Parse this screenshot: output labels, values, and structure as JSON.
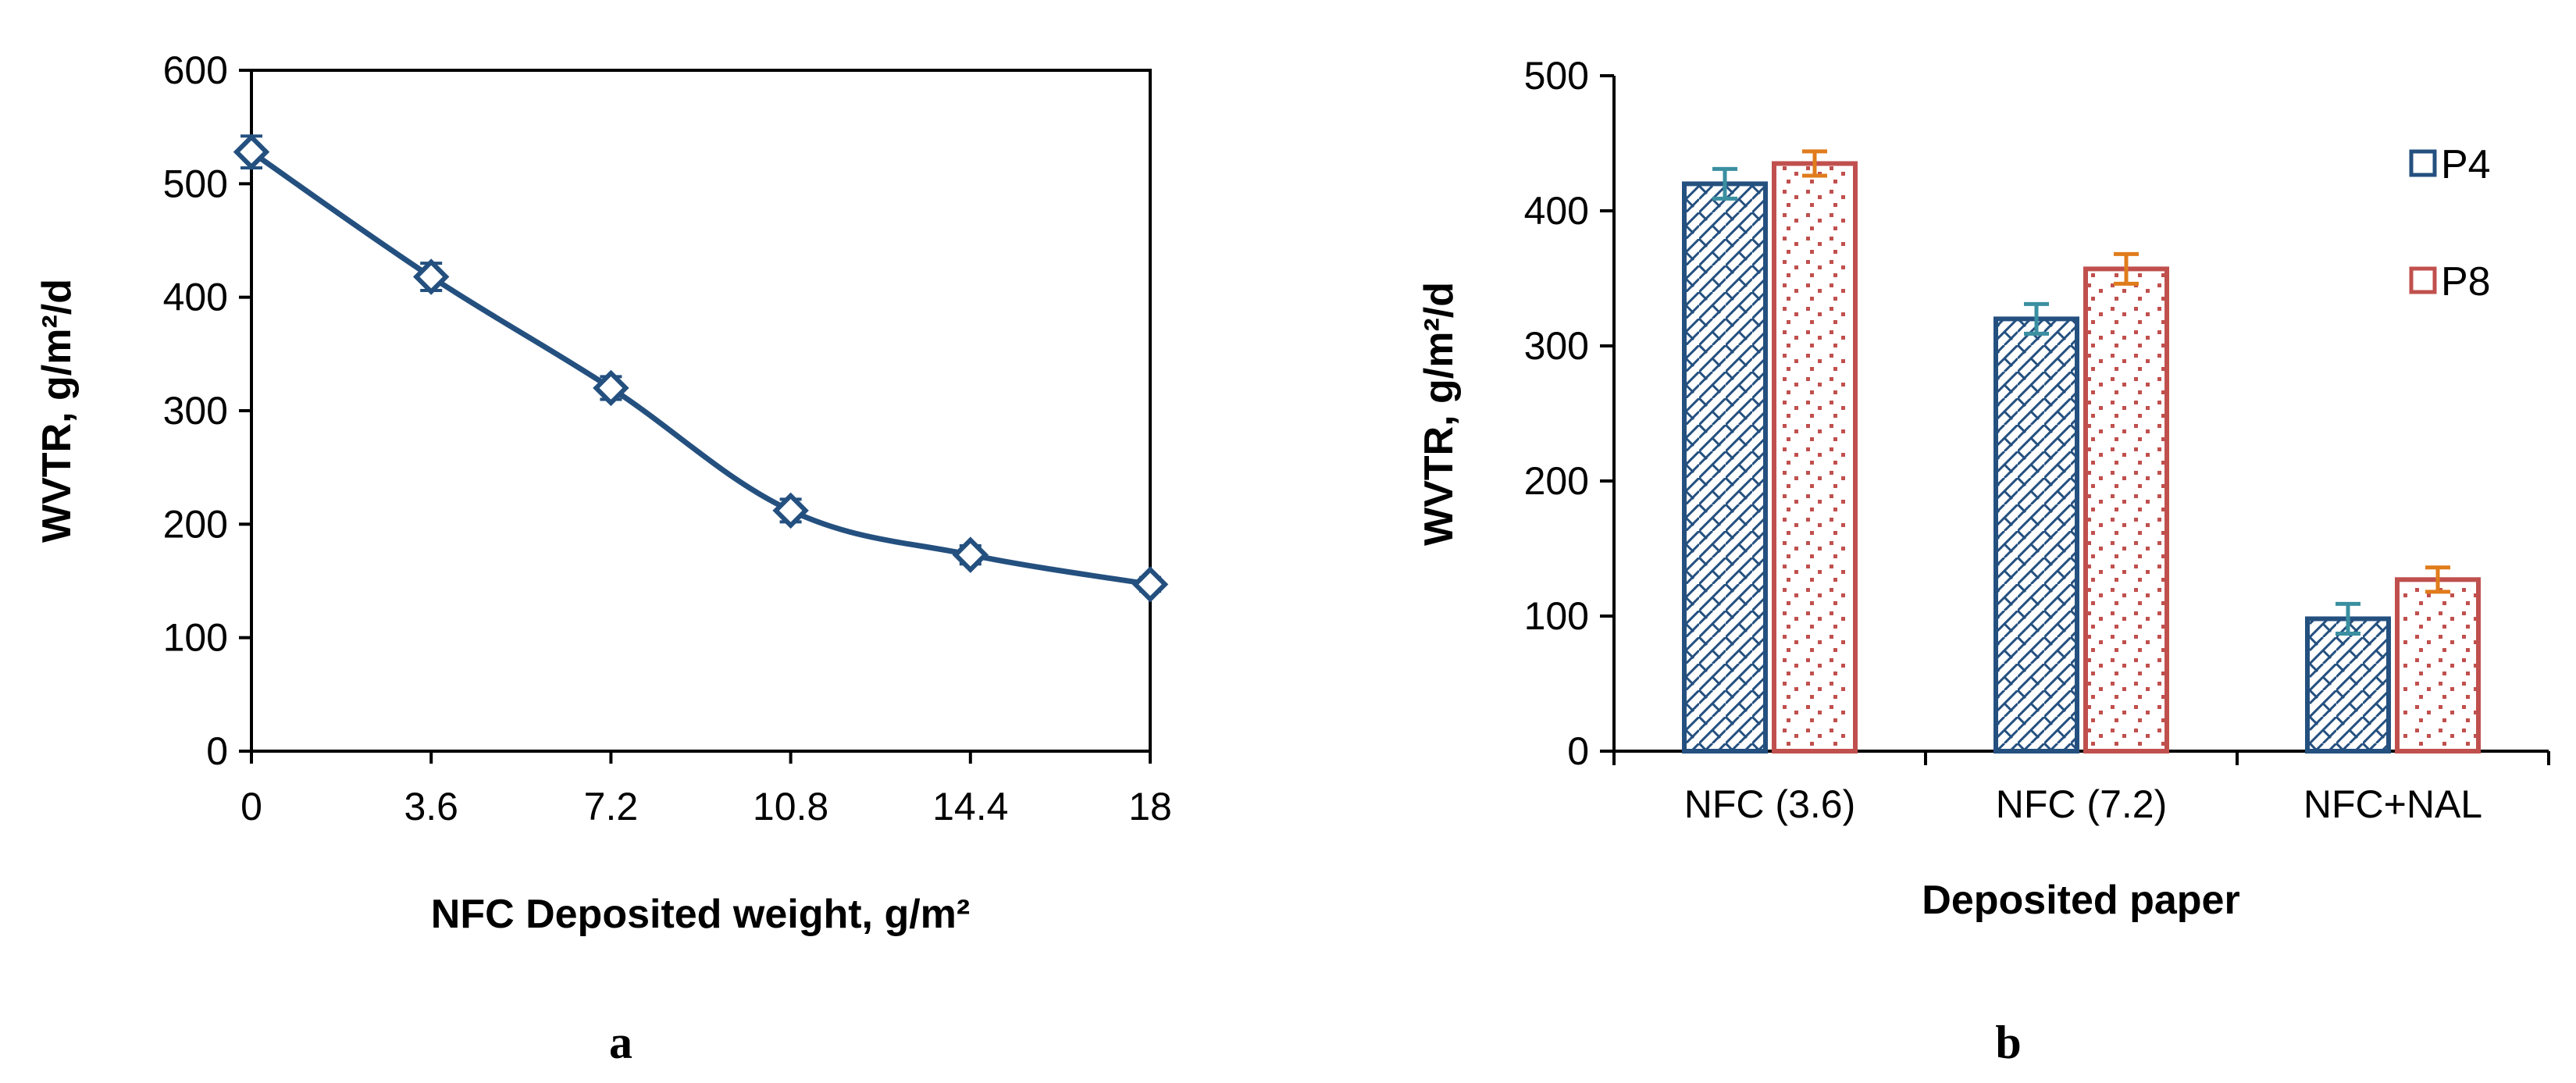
{
  "colors": {
    "p4": "#24507f",
    "p8": "#c0504d",
    "err_p4": "#3a8fa0",
    "err_p8": "#e07c1b",
    "line": "#24507f"
  },
  "chart_data": [
    {
      "type": "line",
      "panel_label": "a",
      "xlabel": "NFC Deposited weight, g/m²",
      "ylabel": "WVTR, g/m²/d",
      "x": [
        0,
        3.6,
        7.2,
        10.8,
        14.4,
        18
      ],
      "x_tick_labels": [
        "0",
        "3.6",
        "7.2",
        "10.8",
        "14.4",
        "18"
      ],
      "y": [
        528,
        418,
        320,
        212,
        173,
        147
      ],
      "y_err": [
        14,
        12,
        10,
        10,
        8,
        6
      ],
      "xlim": [
        0,
        18
      ],
      "ylim": [
        0,
        600
      ],
      "y_ticks": [
        0,
        100,
        200,
        300,
        400,
        500,
        600
      ],
      "marker": "diamond"
    },
    {
      "type": "bar",
      "panel_label": "b",
      "xlabel": "Deposited paper",
      "ylabel": "WVTR, g/m²/d",
      "categories": [
        "NFC (3.6)",
        "NFC (7.2)",
        "NFC+NAL"
      ],
      "series": [
        {
          "name": "P4",
          "values": [
            420,
            320,
            98
          ],
          "errors": [
            11,
            11,
            11
          ]
        },
        {
          "name": "P8",
          "values": [
            435,
            357,
            127
          ],
          "errors": [
            9,
            11,
            9
          ]
        }
      ],
      "ylim": [
        0,
        500
      ],
      "y_ticks": [
        0,
        100,
        200,
        300,
        400,
        500
      ],
      "legend_position": "top-right"
    }
  ]
}
